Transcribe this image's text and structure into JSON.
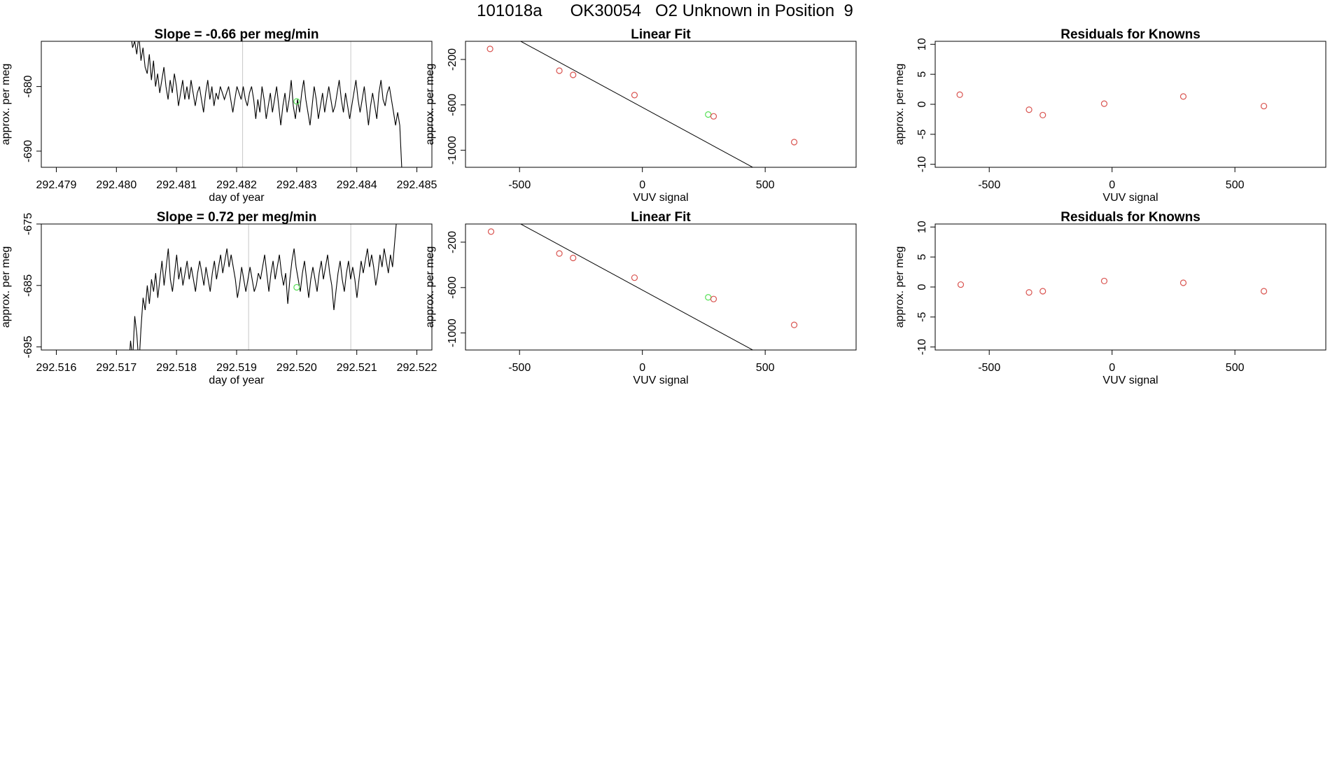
{
  "header": {
    "title": "101018a      OK30054   O2 Unknown in Position  9"
  },
  "colors": {
    "line": "#000000",
    "known_point": "#d9534f",
    "unknown_point": "#55e055",
    "gridline": "#c8c8c8",
    "axis": "#000000"
  },
  "chart_data": [
    {
      "type": "line",
      "id": "ts1",
      "title": "Slope =  -0.66  per meg/min",
      "xlabel": "day of year",
      "ylabel": "approx. per meg",
      "xlim": [
        292.47875,
        292.48525
      ],
      "ylim": [
        -692.5,
        -673
      ],
      "xticks": [
        292.479,
        292.48,
        292.481,
        292.482,
        292.483,
        292.484,
        292.485
      ],
      "xtick_labels": [
        "292.479",
        "292.480",
        "292.481",
        "292.482",
        "292.483",
        "292.484",
        "292.485"
      ],
      "yticks": [
        -680,
        -690
      ],
      "ytick_labels": [
        "-680",
        "-690"
      ],
      "vlines": [
        292.4821,
        292.4839
      ],
      "x_start": 292.4802,
      "x_end": 292.48475,
      "series": [
        -672,
        -671.5,
        -674,
        -673,
        -675,
        -672,
        -676,
        -674,
        -677,
        -678,
        -675,
        -679,
        -676,
        -680,
        -678,
        -681,
        -679,
        -677,
        -680,
        -682,
        -679,
        -681,
        -678,
        -680,
        -683,
        -681,
        -679,
        -682,
        -680,
        -682,
        -679,
        -681,
        -683,
        -681,
        -680,
        -682,
        -684,
        -681,
        -679,
        -682,
        -680,
        -683,
        -681,
        -682,
        -680,
        -681,
        -682,
        -681,
        -680,
        -682,
        -684,
        -682,
        -680,
        -681,
        -682,
        -680,
        -682,
        -683,
        -681,
        -680,
        -682,
        -685,
        -682,
        -684,
        -680,
        -682,
        -685,
        -683,
        -681,
        -684,
        -682,
        -680,
        -683,
        -686,
        -683,
        -681,
        -684,
        -682,
        -679,
        -683,
        -685,
        -682,
        -684,
        -681,
        -679,
        -682,
        -684,
        -686,
        -683,
        -680,
        -682,
        -685,
        -683,
        -681,
        -684,
        -682,
        -680,
        -682,
        -684,
        -683,
        -681,
        -679,
        -682,
        -684,
        -681,
        -683,
        -685,
        -683,
        -681,
        -679,
        -682,
        -684,
        -682,
        -680,
        -683,
        -686,
        -683,
        -681,
        -683,
        -685,
        -681,
        -679,
        -682,
        -683,
        -681,
        -680,
        -682,
        -684,
        -686,
        -684,
        -686,
        -693
      ],
      "unknown_marker": {
        "x": 292.483,
        "y": -682.3
      }
    },
    {
      "type": "scatter",
      "id": "fit1",
      "title": "Linear Fit",
      "xlabel": "VUV signal",
      "ylabel": "approx. per meg",
      "xlim": [
        -720,
        870
      ],
      "ylim": [
        -1150,
        -40
      ],
      "xticks": [
        -500,
        0,
        500
      ],
      "xtick_labels": [
        "-500",
        "0",
        "500"
      ],
      "yticks": [
        -200,
        -600,
        -1000
      ],
      "ytick_labels": [
        "-200",
        "-600",
        "-1000"
      ],
      "fit_line": {
        "slope": -1.175,
        "intercept": -622,
        "x0": -660,
        "x1": 850
      },
      "knowns": [
        [
          -620,
          -107
        ],
        [
          -338,
          -299
        ],
        [
          -282,
          -336
        ],
        [
          -32,
          -514
        ],
        [
          290,
          -701
        ],
        [
          618,
          -928
        ]
      ],
      "unknown": [
        [
          268,
          -685
        ]
      ]
    },
    {
      "type": "scatter",
      "id": "res1",
      "title": "Residuals for Knowns",
      "xlabel": "VUV signal",
      "ylabel": "approx. per meg",
      "xlim": [
        -720,
        870
      ],
      "ylim": [
        -10.5,
        10.5
      ],
      "xticks": [
        -500,
        0,
        500
      ],
      "xtick_labels": [
        "-500",
        "0",
        "500"
      ],
      "yticks": [
        10,
        5,
        0,
        -5,
        -10
      ],
      "ytick_labels": [
        "10",
        "5",
        "0",
        "-5",
        "-10"
      ],
      "knowns": [
        [
          -620,
          1.6
        ],
        [
          -338,
          -0.9
        ],
        [
          -282,
          -1.8
        ],
        [
          -32,
          0.1
        ],
        [
          290,
          1.3
        ],
        [
          618,
          -0.3
        ]
      ]
    },
    {
      "type": "line",
      "id": "ts2",
      "title": "Slope =  0.72  per meg/min",
      "xlabel": "day of year",
      "ylabel": "approx. per meg",
      "xlim": [
        292.51575,
        292.52225
      ],
      "ylim": [
        -695.5,
        -675
      ],
      "xticks": [
        292.516,
        292.517,
        292.518,
        292.519,
        292.52,
        292.521,
        292.522
      ],
      "xtick_labels": [
        "292.516",
        "292.517",
        "292.518",
        "292.519",
        "292.520",
        "292.521",
        "292.522"
      ],
      "yticks": [
        -675,
        -685,
        -695
      ],
      "ytick_labels": [
        "-675",
        "-685",
        "-695"
      ],
      "vlines": [
        292.5192,
        292.5209
      ],
      "x_start": 292.5172,
      "x_end": 292.5217,
      "series": [
        -699,
        -694,
        -697,
        -690,
        -693,
        -698,
        -692,
        -687,
        -689,
        -685,
        -688,
        -684,
        -686,
        -683,
        -687,
        -684,
        -681,
        -685,
        -682,
        -679,
        -684,
        -686,
        -683,
        -680,
        -684,
        -682,
        -685,
        -683,
        -681,
        -684,
        -682,
        -684,
        -686,
        -683,
        -681,
        -683,
        -685,
        -682,
        -684,
        -686,
        -683,
        -681,
        -684,
        -682,
        -680,
        -683,
        -681,
        -679,
        -682,
        -680,
        -682,
        -684,
        -687,
        -685,
        -682,
        -684,
        -686,
        -684,
        -682,
        -684,
        -686,
        -685,
        -683,
        -684,
        -682,
        -680,
        -683,
        -686,
        -683,
        -681,
        -684,
        -682,
        -680,
        -683,
        -685,
        -683,
        -688,
        -684,
        -681,
        -679,
        -682,
        -684,
        -686,
        -683,
        -681,
        -684,
        -687,
        -684,
        -682,
        -684,
        -686,
        -683,
        -681,
        -684,
        -682,
        -680,
        -683,
        -685,
        -689,
        -686,
        -683,
        -681,
        -684,
        -686,
        -683,
        -681,
        -684,
        -682,
        -684,
        -687,
        -684,
        -681,
        -683,
        -681,
        -679,
        -682,
        -680,
        -682,
        -685,
        -683,
        -680,
        -682,
        -679,
        -681,
        -683,
        -680,
        -682,
        -678,
        -674,
        -670
      ],
      "unknown_marker": {
        "x": 292.52,
        "y": -685.3
      }
    },
    {
      "type": "scatter",
      "id": "fit2",
      "title": "Linear Fit",
      "xlabel": "VUV signal",
      "ylabel": "approx. per meg",
      "xlim": [
        -720,
        870
      ],
      "ylim": [
        -1150,
        -40
      ],
      "xticks": [
        -500,
        0,
        500
      ],
      "xtick_labels": [
        "-500",
        "0",
        "500"
      ],
      "yticks": [
        -200,
        -600,
        -1000
      ],
      "ytick_labels": [
        "-200",
        "-600",
        "-1000"
      ],
      "fit_line": {
        "slope": -1.175,
        "intercept": -622,
        "x0": -660,
        "x1": 850
      },
      "knowns": [
        [
          -616,
          -107
        ],
        [
          -338,
          -300
        ],
        [
          -282,
          -339
        ],
        [
          -32,
          -513
        ],
        [
          290,
          -701
        ],
        [
          618,
          -929
        ]
      ],
      "unknown": [
        [
          268,
          -686
        ]
      ]
    },
    {
      "type": "scatter",
      "id": "res2",
      "title": "Residuals for Knowns",
      "xlabel": "VUV signal",
      "ylabel": "approx. per meg",
      "xlim": [
        -720,
        870
      ],
      "ylim": [
        -10.5,
        10.5
      ],
      "xticks": [
        -500,
        0,
        500
      ],
      "xtick_labels": [
        "-500",
        "0",
        "500"
      ],
      "yticks": [
        10,
        5,
        0,
        -5,
        -10
      ],
      "ytick_labels": [
        "10",
        "5",
        "0",
        "-5",
        "-10"
      ],
      "knowns": [
        [
          -616,
          0.4
        ],
        [
          -338,
          -0.9
        ],
        [
          -282,
          -0.7
        ],
        [
          -32,
          1.0
        ],
        [
          290,
          0.7
        ],
        [
          618,
          -0.7
        ]
      ]
    }
  ]
}
